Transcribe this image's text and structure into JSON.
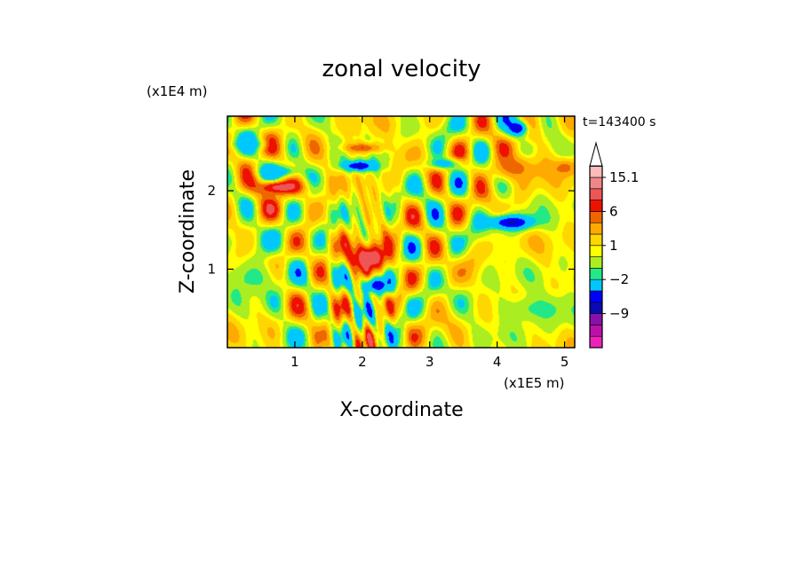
{
  "chart_data": {
    "type": "heatmap",
    "title": "zonal velocity",
    "xlabel": "X-coordinate",
    "ylabel": "Z-coordinate",
    "x_unit": "(x1E5 m)",
    "y_unit": "(x1E4 m)",
    "time_label": "t=143400 s",
    "xlim": [
      0,
      5.15
    ],
    "ylim": [
      0,
      2.95
    ],
    "x_ticks": [
      {
        "value": 1,
        "label": "1"
      },
      {
        "value": 2,
        "label": "2"
      },
      {
        "value": 3,
        "label": "3"
      },
      {
        "value": 4,
        "label": "4"
      },
      {
        "value": 5,
        "label": "5"
      }
    ],
    "y_ticks": [
      {
        "value": 1,
        "label": "1"
      },
      {
        "value": 2,
        "label": "2"
      }
    ],
    "colorbar": {
      "levels": [
        {
          "color": "#ee22bb"
        },
        {
          "color": "#bb11aa"
        },
        {
          "color": "#8811aa"
        },
        {
          "color": "#0a0ab4"
        },
        {
          "color": "#0000ff"
        },
        {
          "color": "#00c8ff"
        },
        {
          "color": "#22e888"
        },
        {
          "color": "#aaee22"
        },
        {
          "color": "#ffff00"
        },
        {
          "color": "#ffd700"
        },
        {
          "color": "#ffaa00"
        },
        {
          "color": "#ee6600"
        },
        {
          "color": "#ee1100"
        },
        {
          "color": "#ee5555"
        },
        {
          "color": "#ee8888"
        },
        {
          "color": "#ffbbbb"
        }
      ],
      "labels": [
        {
          "value": "15.1",
          "level": 15
        },
        {
          "value": "6",
          "level": 12
        },
        {
          "value": "1",
          "level": 9
        },
        {
          "value": "−2",
          "level": 6
        },
        {
          "value": "−9",
          "level": 3
        }
      ]
    },
    "field_features": [
      {
        "x": 0.75,
        "z": 2.05,
        "value": 11,
        "sx": 0.35,
        "sz": 0.1
      },
      {
        "x": 0.78,
        "z": 2.25,
        "value": -4,
        "sx": 0.3,
        "sz": 0.08
      },
      {
        "x": 0.3,
        "z": 2.6,
        "value": -3,
        "sx": 0.25,
        "sz": 0.07
      },
      {
        "x": 1.95,
        "z": 2.32,
        "value": -9,
        "sx": 0.25,
        "sz": 0.07
      },
      {
        "x": 2.0,
        "z": 2.55,
        "value": 7,
        "sx": 0.3,
        "sz": 0.07
      },
      {
        "x": 2.1,
        "z": 1.15,
        "value": 12,
        "sx": 0.3,
        "sz": 0.2
      },
      {
        "x": 2.2,
        "z": 0.8,
        "value": -8,
        "sx": 0.25,
        "sz": 0.12
      },
      {
        "x": 3.2,
        "z": 2.35,
        "value": -4,
        "sx": 0.25,
        "sz": 0.07
      },
      {
        "x": 4.2,
        "z": 1.6,
        "value": -9,
        "sx": 0.35,
        "sz": 0.1
      },
      {
        "x": 4.25,
        "z": 2.3,
        "value": 6,
        "sx": 0.4,
        "sz": 0.18
      },
      {
        "x": 4.3,
        "z": 2.8,
        "value": -9,
        "sx": 0.15,
        "sz": 0.1
      },
      {
        "x": 5.0,
        "z": 2.3,
        "value": 6,
        "sx": 0.2,
        "sz": 0.12
      },
      {
        "x": 0.4,
        "z": 0.9,
        "value": -2,
        "sx": 0.4,
        "sz": 0.25
      },
      {
        "x": 4.6,
        "z": 0.5,
        "value": -2,
        "sx": 0.6,
        "sz": 0.2
      }
    ]
  }
}
